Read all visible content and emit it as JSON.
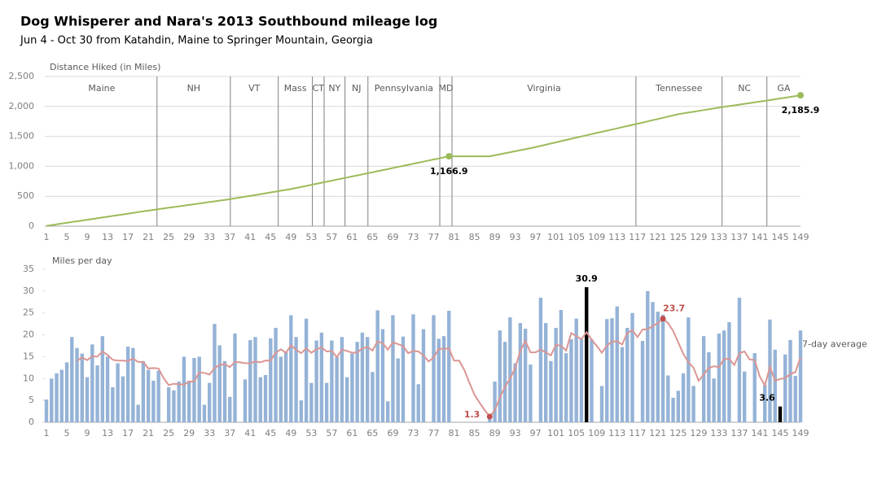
{
  "chart_data": [
    {
      "type": "line",
      "title": "Dog Whisperer and Nara's 2013 Southbound mileage log",
      "subtitle": "Jun 4 - Oct 30 from Katahdin, Maine to Springer Mountain, Georgia",
      "y_label": "Distance Hiked (in Miles)",
      "x": [
        1,
        2,
        3,
        4,
        5,
        6,
        7,
        8,
        9,
        10,
        11,
        12,
        13,
        14,
        15,
        16,
        17,
        18,
        19,
        20,
        21,
        22,
        23,
        24,
        25,
        26,
        27,
        28,
        29,
        30,
        31,
        32,
        33,
        34,
        35,
        36,
        37,
        38,
        39,
        40,
        41,
        42,
        43,
        44,
        45,
        46,
        47,
        48,
        49,
        50,
        51,
        52,
        53,
        54,
        55,
        56,
        57,
        58,
        59,
        60,
        61,
        62,
        63,
        64,
        65,
        66,
        67,
        68,
        69,
        70,
        71,
        72,
        73,
        74,
        75,
        76,
        77,
        78,
        79,
        80,
        81,
        82,
        83,
        84,
        85,
        86,
        87,
        88,
        89,
        90,
        91,
        92,
        93,
        94,
        95,
        96,
        97,
        98,
        99,
        100,
        101,
        102,
        103,
        104,
        105,
        106,
        107,
        108,
        109,
        110,
        111,
        112,
        113,
        114,
        115,
        116,
        117,
        118,
        119,
        120,
        121,
        122,
        123,
        124,
        125,
        126,
        127,
        128,
        129,
        130,
        131,
        132,
        133,
        134,
        135,
        136,
        137,
        138,
        139,
        140,
        141,
        142,
        143,
        144,
        145,
        146,
        147,
        148,
        149
      ],
      "series": [
        {
          "color": "#9bbb59",
          "values": [
            5,
            18,
            30,
            43,
            56,
            69,
            81,
            94,
            107,
            120,
            133,
            145,
            158,
            171,
            184,
            196,
            209,
            222,
            235,
            247,
            260,
            272,
            284,
            296,
            308,
            319,
            331,
            343,
            355,
            367,
            379,
            391,
            403,
            415,
            426,
            438,
            450,
            464,
            478,
            493,
            507,
            521,
            535,
            549,
            564,
            578,
            592,
            606,
            620,
            638,
            655,
            673,
            690,
            708,
            725,
            743,
            760,
            778,
            795,
            813,
            830,
            848,
            865,
            883,
            900,
            918,
            936,
            953,
            971,
            989,
            1007,
            1025,
            1042,
            1060,
            1078,
            1096,
            1114,
            1131,
            1149,
            1166.9,
            1166.9,
            1166.9,
            1166.9,
            1166.9,
            1166.9,
            1166.9,
            1166.9,
            1166.9,
            1184,
            1201,
            1218,
            1235,
            1252,
            1269,
            1286,
            1303,
            1320,
            1340,
            1360,
            1380,
            1400,
            1420,
            1440,
            1460,
            1480,
            1499,
            1518,
            1538,
            1557,
            1576,
            1595,
            1614,
            1633,
            1653,
            1672,
            1691,
            1710,
            1730,
            1750,
            1770,
            1790,
            1810,
            1830,
            1850,
            1870,
            1884,
            1898,
            1911,
            1925,
            1939,
            1953,
            1966,
            1980,
            1993,
            2005,
            2018,
            2030,
            2043,
            2055,
            2068,
            2080,
            2093,
            2106,
            2120,
            2133,
            2146,
            2159,
            2173,
            2185.9
          ]
        }
      ],
      "point_labels": [
        {
          "x": 80,
          "label": "1,166.9"
        },
        {
          "x": 149,
          "label": "2,185.9"
        }
      ],
      "states": [
        "Maine",
        "NH",
        "VT",
        "Mass",
        "CT",
        "NY",
        "NJ",
        "Pennsylvania",
        "MD",
        "Virginia",
        "Tennessee",
        "NC",
        "GA"
      ],
      "state_lines": [
        22.7,
        37.1,
        46.5,
        53.2,
        55.5,
        59.6,
        64.1,
        78.2,
        80.6,
        116.7,
        133.6,
        142.4
      ],
      "xlim": [
        1,
        149
      ],
      "xticks": [
        1,
        5,
        9,
        13,
        17,
        21,
        25,
        29,
        33,
        37,
        41,
        45,
        49,
        53,
        57,
        61,
        65,
        69,
        73,
        77,
        81,
        85,
        89,
        93,
        97,
        101,
        105,
        109,
        113,
        117,
        121,
        125,
        129,
        133,
        137,
        141,
        145,
        149
      ],
      "ylim": [
        0,
        2500
      ],
      "yticks": [
        0,
        500,
        {
          "value": 1000,
          "label": "1,000"
        },
        {
          "value": 1500,
          "label": "1,500"
        },
        {
          "value": 2000,
          "label": "2,000"
        },
        {
          "value": 2500,
          "label": "2,500"
        }
      ],
      "grid": true
    },
    {
      "type": "bar_line",
      "y_label": "Miles per day",
      "x": [
        1,
        2,
        3,
        4,
        5,
        6,
        7,
        8,
        9,
        10,
        11,
        12,
        13,
        14,
        15,
        16,
        17,
        18,
        19,
        20,
        21,
        22,
        23,
        24,
        25,
        26,
        27,
        28,
        29,
        30,
        31,
        32,
        33,
        34,
        35,
        36,
        37,
        38,
        39,
        40,
        41,
        42,
        43,
        44,
        45,
        46,
        47,
        48,
        49,
        50,
        51,
        52,
        53,
        54,
        55,
        56,
        57,
        58,
        59,
        60,
        61,
        62,
        63,
        64,
        65,
        66,
        67,
        68,
        69,
        70,
        71,
        72,
        73,
        74,
        75,
        76,
        77,
        78,
        79,
        80,
        81,
        82,
        83,
        84,
        85,
        86,
        87,
        88,
        89,
        90,
        91,
        92,
        93,
        94,
        95,
        96,
        97,
        98,
        99,
        100,
        101,
        102,
        103,
        104,
        105,
        106,
        107,
        108,
        109,
        110,
        111,
        112,
        113,
        114,
        115,
        116,
        117,
        118,
        119,
        120,
        121,
        122,
        123,
        124,
        125,
        126,
        127,
        128,
        129,
        130,
        131,
        132,
        133,
        134,
        135,
        136,
        137,
        138,
        139,
        140,
        141,
        142,
        143,
        144,
        145,
        146,
        147,
        148,
        149
      ],
      "series": [
        {
          "color": "#95b3d7",
          "values": [
            5.2,
            10,
            11.2,
            12,
            13.7,
            19.5,
            17,
            15.7,
            10.3,
            17.8,
            13,
            19.7,
            15,
            8,
            13.5,
            10.5,
            17.3,
            17,
            4,
            14,
            12,
            9.5,
            11.8,
            0,
            8,
            7.3,
            9.3,
            15,
            9.5,
            14.7,
            15,
            4,
            9,
            22.5,
            17.6,
            14,
            5.8,
            20.3,
            0,
            9.8,
            18.8,
            19.5,
            10.3,
            10.8,
            19.2,
            21.6,
            15,
            16,
            24.5,
            19.5,
            5,
            23.7,
            9,
            18.7,
            20.5,
            9,
            18.7,
            14.9,
            19.5,
            10.3,
            15.7,
            18.4,
            20.5,
            19.5,
            11.5,
            25.6,
            21.3,
            4.8,
            24.5,
            14.6,
            19.6,
            0,
            24.7,
            8.7,
            21.3,
            0,
            24.5,
            19.1,
            19.7,
            25.5,
            0,
            0,
            0,
            0,
            0,
            0,
            0,
            1.3,
            9.3,
            21,
            18.4,
            24,
            13.5,
            22.7,
            21.4,
            13.2,
            0,
            28.5,
            22.7,
            14,
            21.6,
            25.7,
            15.8,
            19,
            23.7,
            19,
            30.9,
            19,
            0,
            8.3,
            23.6,
            23.8,
            26.5,
            17.2,
            21.6,
            25,
            0,
            18.6,
            30,
            27.5,
            25.3,
            24.6,
            10.7,
            5.6,
            7.2,
            11.2,
            24,
            8.3,
            0,
            19.7,
            16,
            10,
            20.3,
            21,
            22.9,
            0,
            28.5,
            11.6,
            0,
            15.8,
            0,
            8.5,
            23.5,
            16.6,
            3.6,
            15.5,
            18.8,
            10.6,
            21
          ]
        },
        {
          "name": "7-day average",
          "color": "#da9694",
          "values": [
            null,
            null,
            null,
            null,
            null,
            null,
            14.1,
            14.8,
            14.2,
            15.1,
            15,
            16.2,
            15.4,
            14.3,
            14.1,
            14.1,
            14,
            14.6,
            13.8,
            13.8,
            12.3,
            12.4,
            12.3,
            10.1,
            8.5,
            8.8,
            8.7,
            8.6,
            9.3,
            9.3,
            11.4,
            11.3,
            10.9,
            12.4,
            13.1,
            13.3,
            12.6,
            13.8,
            13.7,
            13.5,
            13.5,
            13.9,
            13.7,
            14.1,
            14.1,
            15.9,
            16.7,
            15.9,
            17.6,
            16.6,
            15.8,
            16.9,
            15.9,
            16.7,
            17.1,
            16.2,
            16.3,
            14.9,
            16.6,
            16.3,
            15.9,
            16,
            16.9,
            17.2,
            16.4,
            18.5,
            18.1,
            16.6,
            18.3,
            17.9,
            17.4,
            15.8,
            16.3,
            16.2,
            15.3,
            13.9,
            14.8,
            16.8,
            16.8,
            16.9,
            14.1,
            14.1,
            12,
            9.1,
            6.3,
            4.5,
            2.8,
            1.3,
            2.7,
            5.7,
            8.1,
            10,
            12.4,
            16.3,
            18.6,
            16,
            16,
            16.6,
            16,
            15.3,
            17.7,
            17.5,
            16.4,
            20.4,
            19.7,
            19,
            20.6,
            18.9,
            17.5,
            15.9,
            17.5,
            18.5,
            18.5,
            17.8,
            20.4,
            21.1,
            19.5,
            21.2,
            21.3,
            22,
            22.7,
            23.7,
            22.7,
            20.9,
            18.3,
            15.6,
            13.7,
            12.5,
            9.5,
            10.9,
            12.4,
            12.8,
            12.6,
            14.5,
            14.5,
            13.1,
            15.8,
            16.2,
            14.4,
            14.2,
            10.5,
            8.4,
            12.7,
            9.5,
            9.9,
            10.1,
            11,
            11.5,
            14.8
          ]
        }
      ],
      "highlight_days": [
        107,
        145
      ],
      "highlight_color": "#000000",
      "marked_days": [
        88,
        122
      ],
      "marked_color": "#c0504d",
      "xlim": [
        1,
        149
      ],
      "xticks": [
        1,
        5,
        9,
        13,
        17,
        21,
        25,
        29,
        33,
        37,
        41,
        45,
        49,
        53,
        57,
        61,
        65,
        69,
        73,
        77,
        81,
        85,
        89,
        93,
        97,
        101,
        105,
        109,
        113,
        117,
        121,
        125,
        129,
        133,
        137,
        141,
        145,
        149
      ],
      "ylim": [
        0,
        35
      ],
      "yticks": [
        0,
        5,
        10,
        15,
        20,
        25,
        30,
        35
      ],
      "grid": false
    }
  ]
}
